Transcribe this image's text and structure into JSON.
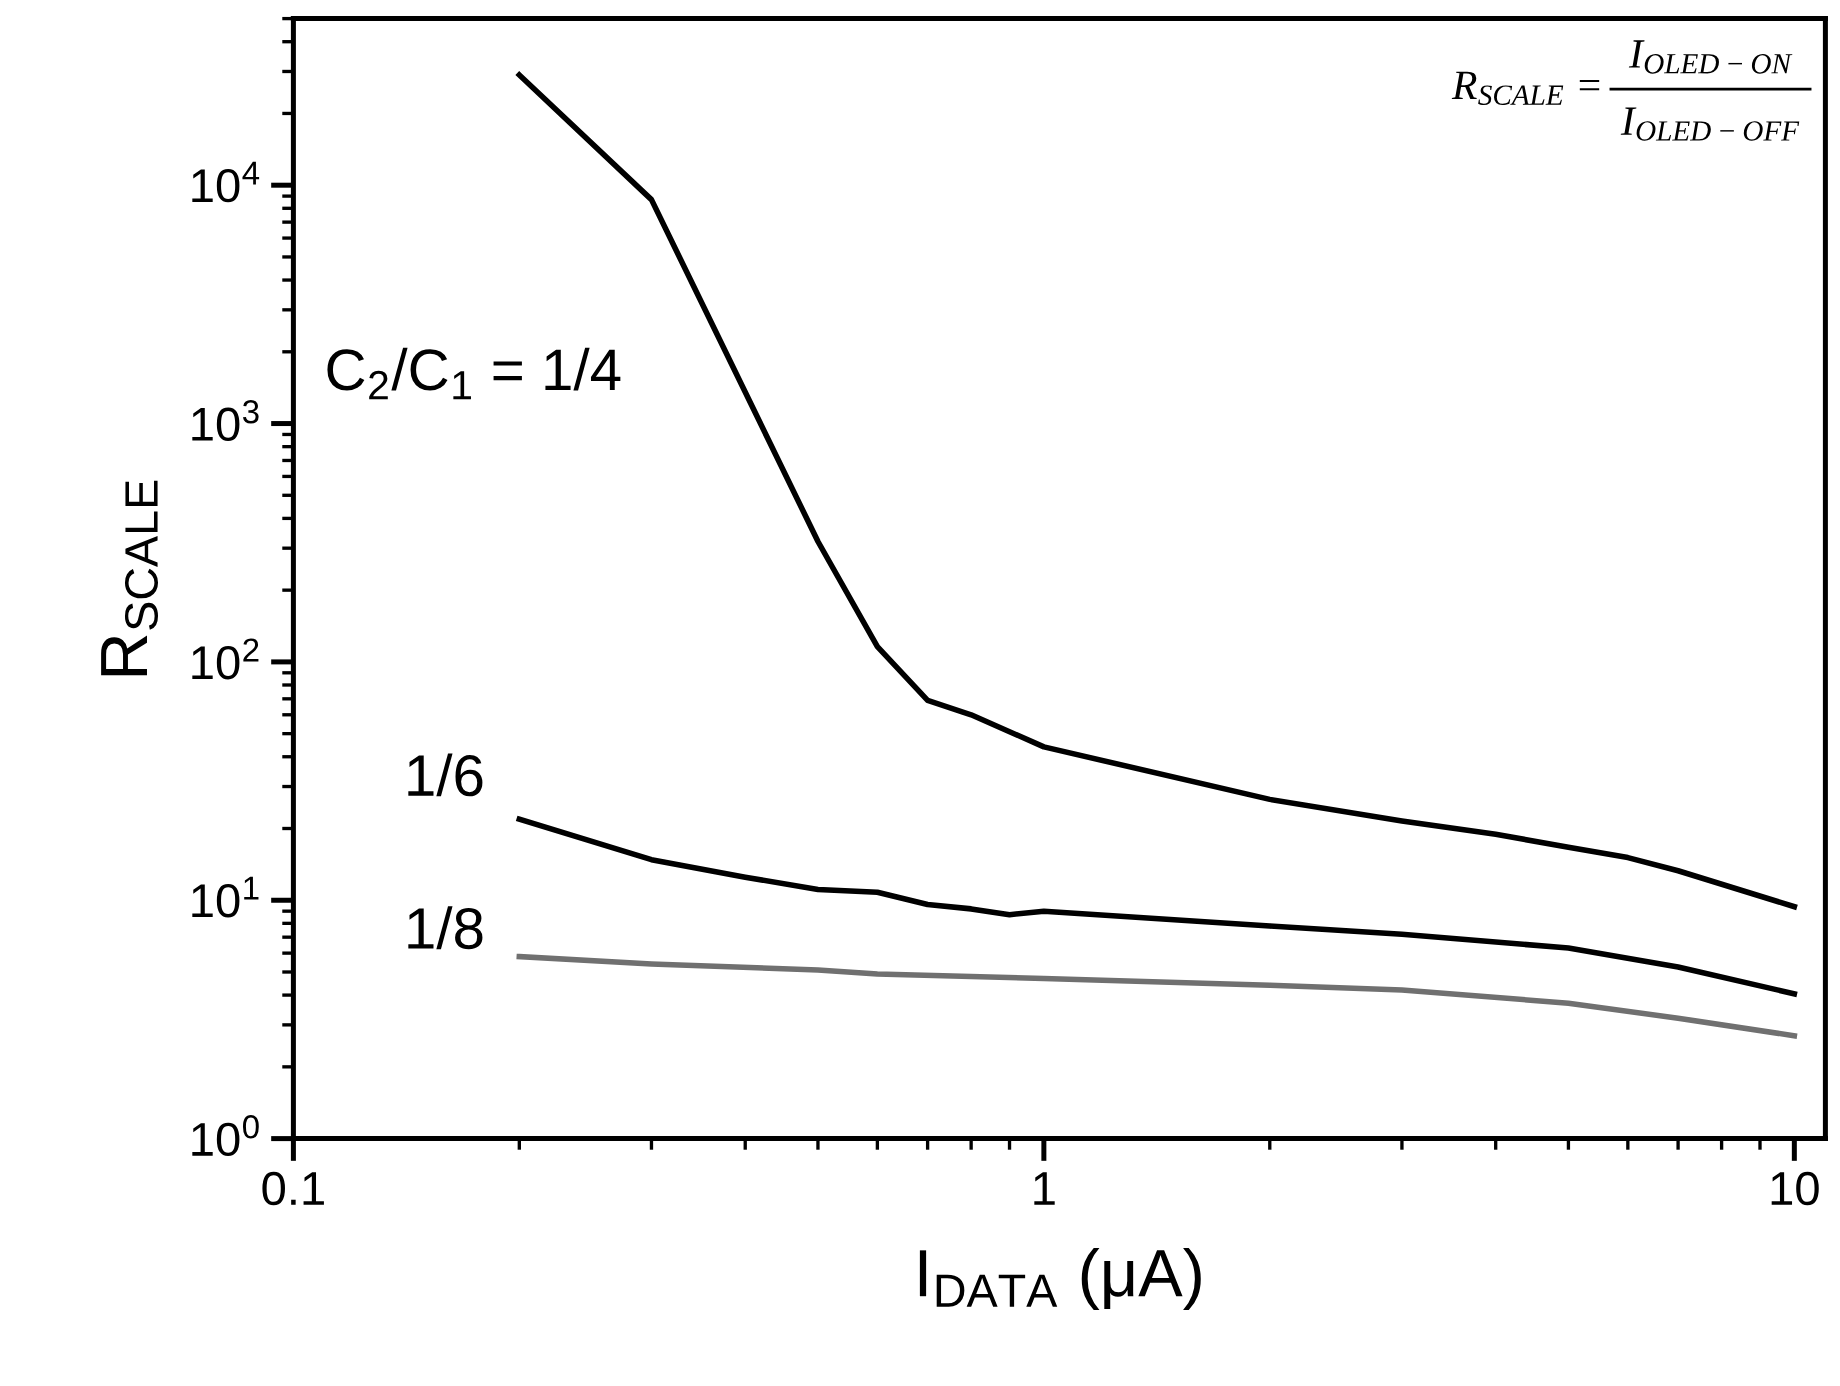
{
  "chart_data": {
    "type": "line",
    "xlabel": "I$_{DATA}$ (μA)",
    "ylabel": "R$_{SCALE}$",
    "log": "xy",
    "grid": false,
    "legend": false,
    "marker": "none",
    "line_style": "solid",
    "xlim": [
      0.1,
      11
    ],
    "xticks": [
      0.1,
      1,
      10
    ],
    "ylim": [
      1,
      50000
    ],
    "yticks": [
      {
        "value": 1,
        "label": "10$^{0}$"
      },
      {
        "value": 10,
        "label": "10$^{1}$"
      },
      {
        "value": 100,
        "label": "10$^{2}$"
      },
      {
        "value": 1000,
        "label": "10$^{3}$"
      },
      {
        "value": 10000,
        "label": "10$^{4}$"
      }
    ],
    "annotations": [
      "R$_{SCALE}$ =",
      "I$_{OLED−ON}$",
      "I$_{OLED−OFF}$"
    ],
    "series": [
      {
        "name": "C$_{2}$/C$_{1}$ = 1/4",
        "color": "#000000",
        "x": [
          0.2,
          0.3,
          0.5,
          0.6,
          0.7,
          0.8,
          1,
          2,
          3,
          4,
          5,
          6,
          7,
          10
        ],
        "values": [
          29000,
          8700,
          320,
          116,
          69,
          60,
          44,
          26.5,
          21.5,
          18.9,
          16.7,
          15.1,
          13.3,
          9.4
        ]
      },
      {
        "name": "1/6",
        "color": "#000000",
        "x": [
          0.2,
          0.3,
          0.4,
          0.5,
          0.6,
          0.7,
          0.8,
          0.9,
          1,
          2,
          3,
          5,
          7,
          10
        ],
        "values": [
          21.9,
          14.8,
          12.5,
          11.1,
          10.8,
          9.6,
          9.2,
          8.7,
          9.0,
          7.8,
          7.2,
          6.3,
          5.25,
          4.05
        ]
      },
      {
        "name": "1/8",
        "color": "#707070",
        "x": [
          0.2,
          0.3,
          0.5,
          0.6,
          1,
          2,
          3,
          5,
          7,
          10
        ],
        "values": [
          5.8,
          5.4,
          5.1,
          4.9,
          4.7,
          4.4,
          4.2,
          3.7,
          3.2,
          2.7
        ]
      }
    ]
  }
}
